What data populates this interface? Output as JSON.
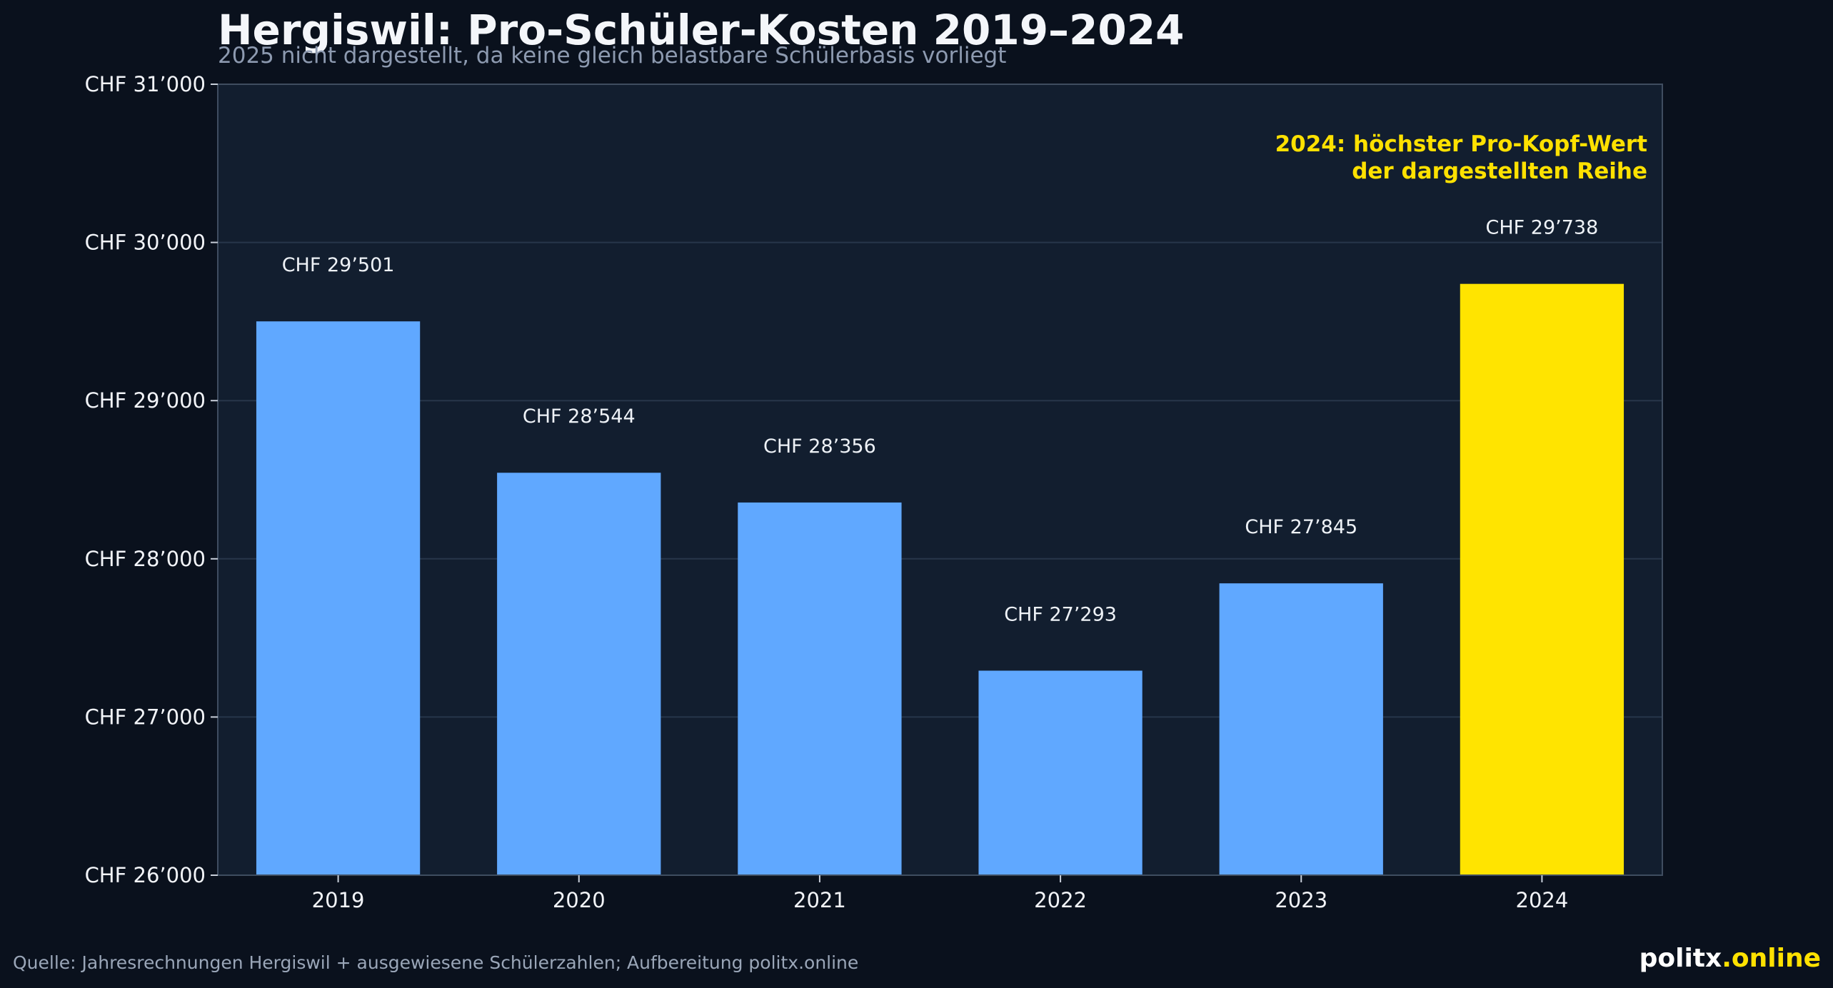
{
  "chart_data": {
    "type": "bar",
    "title": "Hergiswil: Pro-Schüler-Kosten 2019–2024",
    "subtitle": "2025 nicht dargestellt, da keine gleich belastbare Schülerbasis vorliegt",
    "categories": [
      "2019",
      "2020",
      "2021",
      "2022",
      "2023",
      "2024"
    ],
    "values": [
      29501,
      28544,
      28356,
      27293,
      27845,
      29738
    ],
    "value_labels": [
      "CHF 29’501",
      "CHF 28’544",
      "CHF 28’356",
      "CHF 27’293",
      "CHF 27’845",
      "CHF 29’738"
    ],
    "ylim": [
      26000,
      31000
    ],
    "yticks": [
      26000,
      27000,
      28000,
      29000,
      30000,
      31000
    ],
    "ytick_labels": [
      "CHF 26’000",
      "CHF 27’000",
      "CHF 28’000",
      "CHF 29’000",
      "CHF 30’000",
      "CHF 31’000"
    ],
    "xlabel": "",
    "ylabel": "",
    "grid": true,
    "highlight_category": "2024",
    "annotation": [
      "2024: höchster Pro-Kopf-Wert",
      "der dargestellten Reihe"
    ],
    "annotation_placement": "top-right",
    "colors": {
      "bar": "#60a8ff",
      "highlight": "#ffe400",
      "annotation": "#ffe100",
      "background": "#0a111d",
      "plot_background": "#121e2f",
      "grid": "#27364a",
      "axis": "#3f4d60"
    }
  },
  "footer": {
    "source": "Quelle: Jahresrechnungen Hergiswil + ausgewiesene Schülerzahlen; Aufbereitung politx.online",
    "brand_main": "politx",
    "brand_accent": ".online"
  }
}
